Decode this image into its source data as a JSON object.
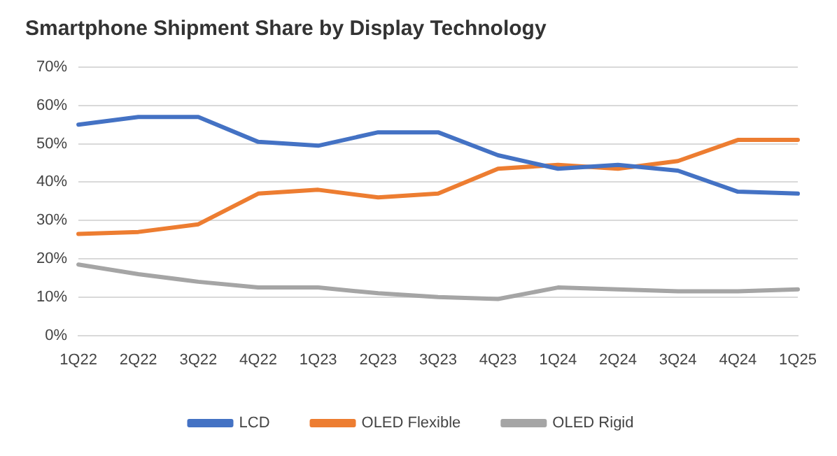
{
  "chart_data": {
    "type": "line",
    "title": "Smartphone Shipment Share by Display Technology",
    "categories": [
      "1Q22",
      "2Q22",
      "3Q22",
      "4Q22",
      "1Q23",
      "2Q23",
      "3Q23",
      "4Q23",
      "1Q24",
      "2Q24",
      "3Q24",
      "4Q24",
      "1Q25"
    ],
    "series": [
      {
        "name": "LCD",
        "color": "#4472c4",
        "values": [
          55,
          57,
          57,
          50.5,
          49.5,
          53,
          53,
          47,
          43.5,
          44.5,
          43,
          37.5,
          37
        ]
      },
      {
        "name": "OLED Flexible",
        "color": "#ed7d31",
        "values": [
          26.5,
          27,
          29,
          37,
          38,
          36,
          37,
          43.5,
          44.5,
          43.5,
          45.5,
          51,
          51
        ]
      },
      {
        "name": "OLED Rigid",
        "color": "#a5a5a5",
        "values": [
          18.5,
          16,
          14,
          12.5,
          12.5,
          11,
          10,
          9.5,
          12.5,
          12,
          11.5,
          11.5,
          12
        ]
      }
    ],
    "ylim": [
      0,
      70
    ],
    "yticks": [
      {
        "value": 0,
        "label": "0%"
      },
      {
        "value": 10,
        "label": "10%"
      },
      {
        "value": 20,
        "label": "20%"
      },
      {
        "value": 30,
        "label": "30%"
      },
      {
        "value": 40,
        "label": "40%"
      },
      {
        "value": 50,
        "label": "50%"
      },
      {
        "value": 60,
        "label": "60%"
      },
      {
        "value": 70,
        "label": "70%"
      }
    ],
    "grid": "y",
    "legend": "bottom",
    "marker": "none",
    "line_style": "solid"
  }
}
